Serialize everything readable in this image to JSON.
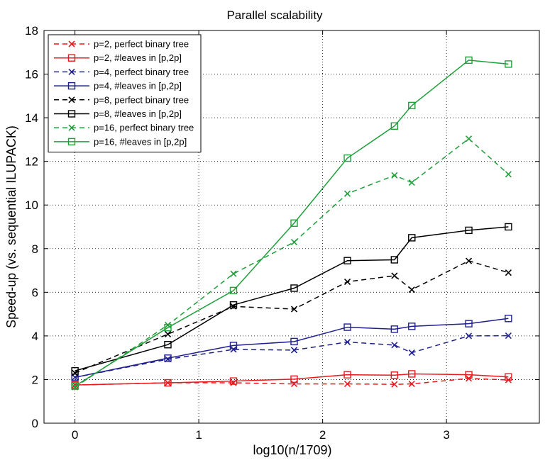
{
  "chart_data": {
    "type": "line",
    "title": "Parallel scalability",
    "xlabel": "log10(n/1709)",
    "ylabel": "Speed-up (vs. sequential ILUPACK)",
    "xlim": [
      -0.25,
      3.75
    ],
    "ylim": [
      0,
      18
    ],
    "xticks": [
      0,
      1,
      2,
      3
    ],
    "yticks": [
      0,
      2,
      4,
      6,
      8,
      10,
      12,
      14,
      16,
      18
    ],
    "xtick_labels": [
      "0",
      "1",
      "2",
      "3"
    ],
    "ytick_labels": [
      "0",
      "2",
      "4",
      "6",
      "8",
      "10",
      "12",
      "14",
      "16",
      "18"
    ],
    "grid": true,
    "legend_position": "top-left",
    "x": [
      0,
      0.75,
      1.28,
      1.77,
      2.2,
      2.58,
      2.72,
      3.18,
      3.5
    ],
    "series": [
      {
        "name": "p=2,  perfect binary tree",
        "color": "#e8191f",
        "dash": true,
        "marker": "x",
        "values": [
          1.75,
          1.85,
          1.85,
          1.8,
          1.8,
          1.78,
          1.8,
          2.05,
          1.98
        ]
      },
      {
        "name": "p=2,  #leaves in [p,2p]",
        "color": "#e8191f",
        "dash": false,
        "marker": "square",
        "values": [
          1.75,
          1.85,
          1.93,
          2.02,
          2.22,
          2.2,
          2.26,
          2.22,
          2.12
        ]
      },
      {
        "name": "p=4,  perfect binary tree",
        "color": "#1f1f8f",
        "dash": true,
        "marker": "x",
        "values": [
          2.1,
          2.93,
          3.38,
          3.35,
          3.72,
          3.58,
          3.23,
          4.0,
          4.01
        ]
      },
      {
        "name": "p=4,  #leaves in [p,2p]",
        "color": "#1f1f8f",
        "dash": false,
        "marker": "square",
        "values": [
          2.1,
          2.98,
          3.56,
          3.74,
          4.4,
          4.31,
          4.44,
          4.56,
          4.8
        ]
      },
      {
        "name": "p=8,  perfect binary tree",
        "color": "#000000",
        "dash": true,
        "marker": "x",
        "values": [
          2.3,
          4.08,
          5.35,
          5.23,
          6.48,
          6.76,
          6.12,
          7.44,
          6.9
        ]
      },
      {
        "name": "p=8,  #leaves in [p,2p]",
        "color": "#000000",
        "dash": false,
        "marker": "square",
        "values": [
          2.4,
          3.6,
          5.42,
          6.19,
          7.45,
          7.49,
          8.5,
          8.84,
          9.0
        ]
      },
      {
        "name": "p=16, perfect binary tree",
        "color": "#1fa03a",
        "dash": true,
        "marker": "x",
        "values": [
          1.65,
          4.5,
          6.85,
          8.3,
          10.52,
          11.36,
          11.03,
          13.04,
          11.41
        ]
      },
      {
        "name": "p=16, #leaves in [p,2p]",
        "color": "#1fa03a",
        "dash": false,
        "marker": "square",
        "values": [
          1.7,
          4.38,
          6.08,
          9.17,
          12.15,
          13.62,
          14.56,
          16.64,
          16.46
        ]
      }
    ]
  }
}
